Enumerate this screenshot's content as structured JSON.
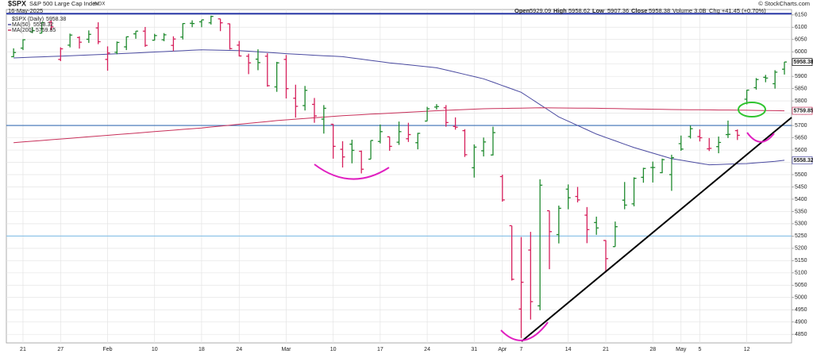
{
  "chart_data": {
    "type": "ohlc",
    "title": "$SPX",
    "subtitle": "S&P 500 Large Cap Index",
    "exchange": "INDX",
    "date": "16-May-2025",
    "credit": "© StockCharts.com",
    "summary_labels": [
      "Open",
      "High",
      "Low",
      "Close"
    ],
    "volume_label": "Volume 3.0B",
    "change_label": "Chg +41.45 (+0.70%)",
    "categories": [
      null,
      "21",
      null,
      null,
      null,
      "27",
      null,
      null,
      null,
      null,
      "Feb",
      null,
      null,
      null,
      null,
      "10",
      null,
      null,
      null,
      null,
      "18",
      null,
      null,
      null,
      "24",
      null,
      null,
      null,
      null,
      "Mar",
      null,
      null,
      null,
      null,
      "10",
      null,
      null,
      null,
      null,
      "17",
      null,
      null,
      null,
      null,
      "24",
      null,
      null,
      null,
      null,
      "31",
      null,
      null,
      "Apr",
      null,
      "7",
      null,
      null,
      null,
      null,
      "14",
      null,
      null,
      null,
      "21",
      null,
      null,
      null,
      null,
      "28",
      null,
      null,
      "May",
      null,
      "5",
      null,
      null,
      null,
      null,
      "12",
      null,
      null,
      null,
      null
    ],
    "ohlc": {
      "name": "$SPX (Daily)",
      "up_color": "#1f8a2e",
      "down_color": "#d6205c",
      "open": [
        5980,
        6015,
        6081,
        6076,
        6121,
        5969,
        6027,
        6058,
        6051,
        6097,
        5969,
        5998,
        6020,
        6073,
        6084,
        6047,
        6049,
        6026,
        6060,
        6116,
        6122,
        6118,
        6134,
        6114,
        6027,
        5982,
        5970,
        5982,
        5857,
        5969,
        5811,
        5781,
        5786,
        5726,
        5705,
        5603,
        5624,
        5595,
        5563,
        5635,
        5654,
        5632,
        5646,
        5630,
        5718,
        5775,
        5772,
        5696,
        5679,
        5528,
        5597,
        5580,
        5492,
        5292,
        4953,
        5193,
        4966,
        5353,
        5256,
        5441,
        5411,
        5335,
        5305,
        5232,
        5207,
        5396,
        5381,
        5489,
        5529,
        5508,
        5500,
        5626,
        5655,
        5655,
        5605,
        5614,
        5663,
        5679,
        5807,
        5854,
        5896,
        5870,
        5929.09
      ],
      "high": [
        6014,
        6051,
        6100,
        6119,
        6128,
        6018,
        6074,
        6063,
        6087,
        6120,
        6022,
        6042,
        6062,
        6084,
        6101,
        6073,
        6076,
        6063,
        6116,
        6128,
        6130,
        6147,
        6134,
        6115,
        6044,
        5992,
        6010,
        5994,
        5959,
        5987,
        5866,
        5861,
        5812,
        5783,
        5706,
        5636,
        5642,
        5598,
        5639,
        5704,
        5654,
        5716,
        5711,
        5670,
        5776,
        5787,
        5783,
        5733,
        5685,
        5623,
        5651,
        5695,
        5500,
        5292,
        5246,
        5267,
        5481,
        5353,
        5374,
        5460,
        5450,
        5368,
        5329,
        5233,
        5309,
        5470,
        5489,
        5528,
        5553,
        5565,
        5581,
        5659,
        5700,
        5684,
        5649,
        5655,
        5720,
        5684,
        5845,
        5893,
        5906,
        5925,
        5958.62
      ],
      "low": [
        5978,
        6007,
        6076,
        6075,
        6088,
        5962,
        6018,
        6013,
        6036,
        6031,
        5923,
        5990,
        6007,
        6053,
        6020,
        6046,
        6043,
        6003,
        6050,
        6100,
        6100,
        6111,
        6084,
        6009,
        5981,
        5909,
        5925,
        5858,
        5837,
        5810,
        5732,
        5761,
        5711,
        5667,
        5565,
        5529,
        5546,
        5505,
        5563,
        5627,
        5597,
        5621,
        5633,
        5603,
        5718,
        5765,
        5695,
        5683,
        5572,
        5488,
        5574,
        5578,
        5390,
        5069,
        4835,
        4910,
        4948,
        5115,
        5220,
        5359,
        5387,
        5221,
        5255,
        5102,
        5207,
        5359,
        5371,
        5467,
        5468,
        5506,
        5434,
        5597,
        5647,
        5635,
        5596,
        5587,
        5649,
        5641,
        5786,
        5846,
        5876,
        5850,
        5907.36
      ],
      "close": [
        5997,
        6049,
        6086,
        6119,
        6101,
        6012,
        6068,
        6039,
        6071,
        6041,
        5995,
        6038,
        6061,
        6084,
        6026,
        6066,
        6069,
        6052,
        6115,
        6115,
        6130,
        6144,
        6118,
        6013,
        5983,
        5955,
        5956,
        5862,
        5955,
        5850,
        5778,
        5843,
        5739,
        5770,
        5615,
        5572,
        5599,
        5522,
        5639,
        5675,
        5615,
        5675,
        5663,
        5668,
        5768,
        5777,
        5712,
        5693,
        5581,
        5612,
        5633,
        5671,
        5397,
        5074,
        5062,
        4983,
        5457,
        5268,
        5363,
        5406,
        5397,
        5276,
        5283,
        5158,
        5288,
        5376,
        5485,
        5525,
        5529,
        5561,
        5569,
        5604,
        5687,
        5650,
        5607,
        5631,
        5664,
        5660,
        5844,
        5887,
        5893,
        5917,
        5958.38
      ]
    },
    "series": [
      {
        "name": "MA(50)",
        "color": "#4a4aa0",
        "values": [
          5975,
          5976.5,
          5978,
          5979.5,
          5981,
          5982.5,
          5984,
          5985.5,
          5987,
          5988.5,
          5990,
          5991.8,
          5993.6,
          5995.4,
          5997.2,
          5999,
          6000.8,
          6002.6,
          6004.4,
          6006.2,
          6008,
          6007.25,
          6006.5,
          6005.75,
          6005,
          6002.5,
          6000,
          5997.5,
          5995,
          5992.5,
          5990,
          5988,
          5986,
          5984,
          5982,
          5980,
          5975,
          5970,
          5965,
          5960,
          5955,
          5951,
          5947,
          5943,
          5939,
          5935,
          5926,
          5917,
          5908,
          5899,
          5890,
          5876.25,
          5862.5,
          5848.75,
          5835,
          5810,
          5785,
          5760,
          5735,
          5717.5,
          5700,
          5682.5,
          5665,
          5651.25,
          5637.5,
          5623.75,
          5610,
          5598.75,
          5587.5,
          5576.25,
          5565,
          5558.75,
          5552.5,
          5546.25,
          5540,
          5541.25,
          5542.5,
          5543.75,
          5545,
          5548,
          5551,
          5554,
          5558.32
        ]
      },
      {
        "name": "MA(200)",
        "color": "#c8305a",
        "values": [
          5630,
          5633,
          5636,
          5639,
          5642,
          5645,
          5648,
          5651,
          5654,
          5657,
          5660,
          5663,
          5666,
          5669,
          5672,
          5675,
          5678,
          5681,
          5684,
          5687,
          5690,
          5693.75,
          5697.5,
          5701.25,
          5705,
          5708.75,
          5712.5,
          5716.25,
          5720,
          5722.9,
          5725.7,
          5728.6,
          5731.4,
          5734.3,
          5737.1,
          5740,
          5742,
          5744,
          5746,
          5748,
          5750,
          5752,
          5754,
          5756,
          5758,
          5760,
          5761.6,
          5763.2,
          5764.8,
          5766.4,
          5768,
          5768.7,
          5769.3,
          5770,
          5770.7,
          5771.3,
          5772,
          5771.7,
          5771.3,
          5771,
          5770.7,
          5770.3,
          5770,
          5769.4,
          5768.8,
          5768.1,
          5767.5,
          5766.9,
          5766.3,
          5765.6,
          5765,
          5764.6,
          5764.3,
          5763.9,
          5763.5,
          5763.1,
          5762.8,
          5762.4,
          5762,
          5761.5,
          5761,
          5760.4,
          5759.85
        ]
      }
    ],
    "levels": [
      {
        "value": 6155,
        "color": "#2b3aa8"
      },
      {
        "value": 5700,
        "color": "#3a6fb5"
      },
      {
        "value": 5250,
        "color": "#8fc4e8"
      }
    ],
    "ylim": [
      4815,
      6172
    ],
    "yticks": [
      4850,
      4900,
      4950,
      5000,
      5050,
      5100,
      5150,
      5200,
      5250,
      5300,
      5350,
      5400,
      5450,
      5500,
      5550,
      5600,
      5650,
      5700,
      5750,
      5800,
      5850,
      5900,
      5950,
      6000,
      6050,
      6100,
      6150
    ],
    "grid": true
  }
}
